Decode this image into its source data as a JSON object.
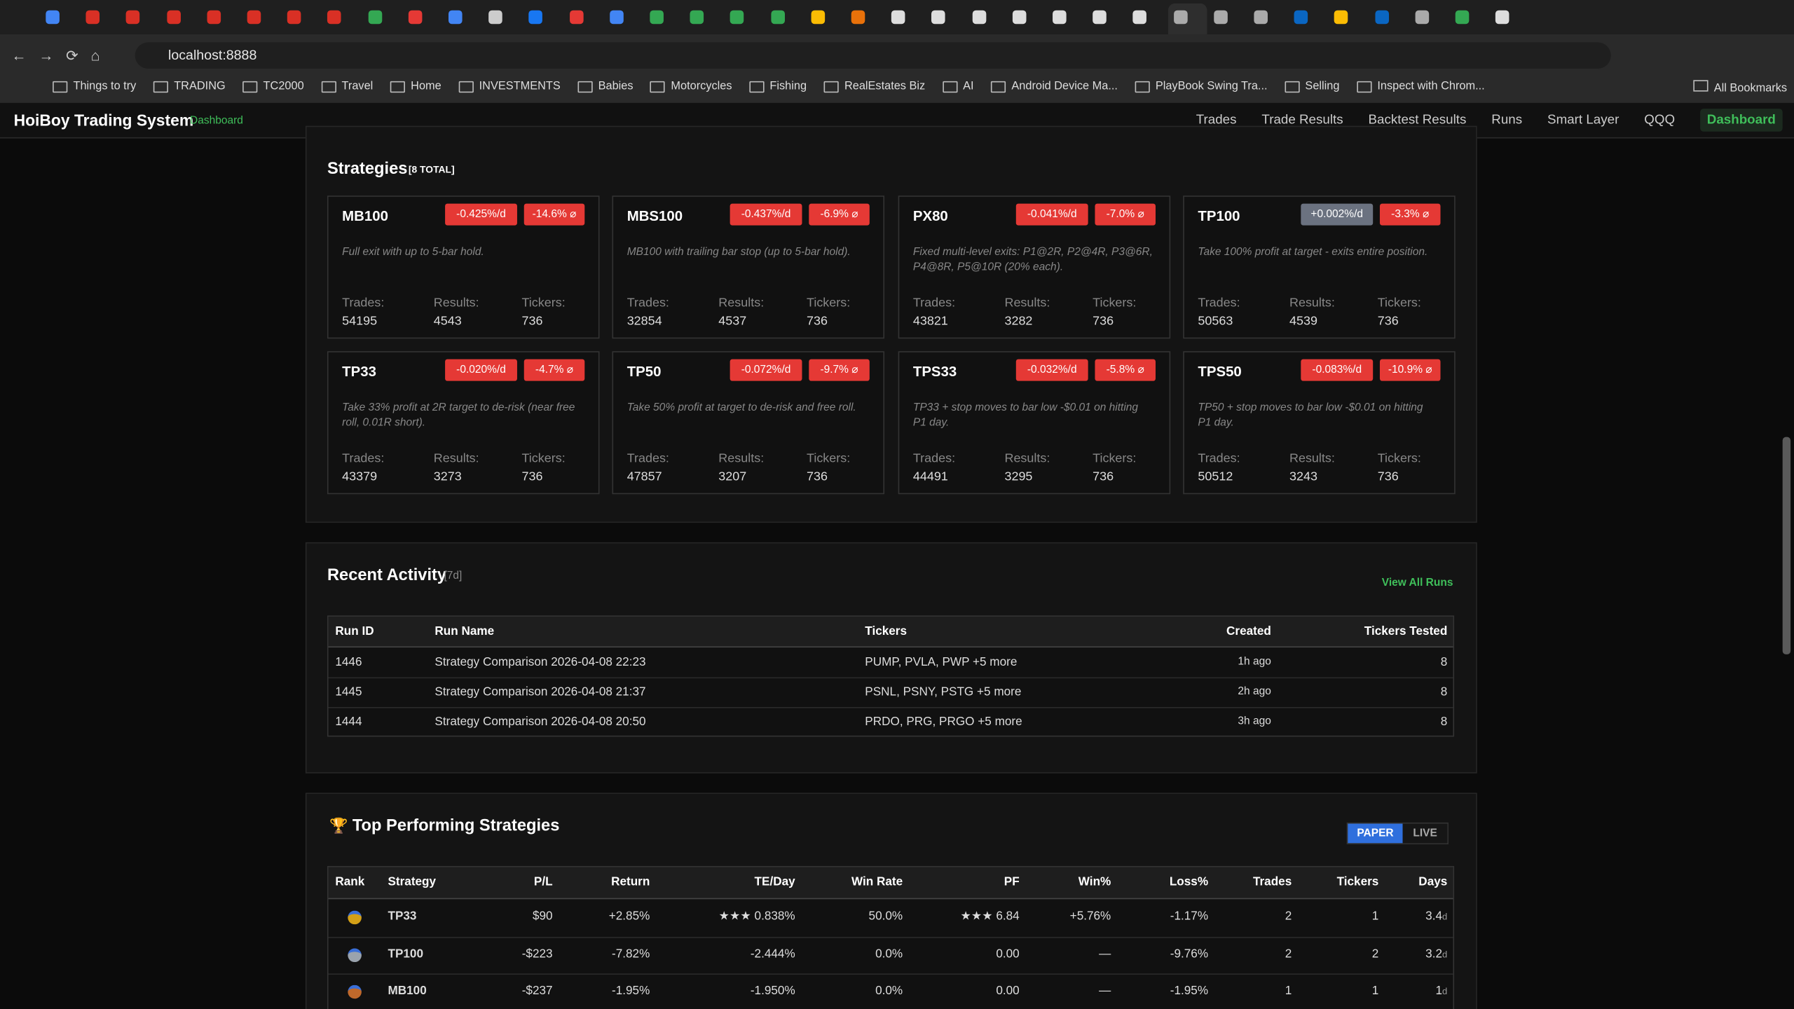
{
  "browser": {
    "url": "localhost:8888",
    "bookmarks": [
      "Things to try",
      "TRADING",
      "TC2000",
      "Travel",
      "Home",
      "INVESTMENTS",
      "Babies",
      "Motorcycles",
      "Fishing",
      "RealEstates Biz",
      "AI",
      "Android Device Ma...",
      "PlayBook Swing Tra...",
      "Selling",
      "Inspect with Chrom..."
    ],
    "all_bookmarks": "All Bookmarks"
  },
  "header": {
    "title": "HoiBoy Trading System",
    "subtitle": "Dashboard",
    "nav": [
      "Trades",
      "Trade Results",
      "Backtest Results",
      "Runs",
      "Smart Layer",
      "QQQ",
      "Dashboard"
    ]
  },
  "strategies": {
    "title": "Strategies",
    "count": "[8 TOTAL]",
    "stat_labels": [
      "Trades:",
      "Results:",
      "Tickers:"
    ],
    "cards": [
      {
        "name": "MB100",
        "rate": "-0.425%/d",
        "drawdown": "-14.6% ⌀",
        "description": "Full exit with up to 5-bar hold.",
        "trades": 54195,
        "results": 4543,
        "tickers": 736
      },
      {
        "name": "MBS100",
        "rate": "-0.437%/d",
        "drawdown": "-6.9% ⌀",
        "description": "MB100 with trailing bar stop (up to 5-bar hold).",
        "trades": 32854,
        "results": 4537,
        "tickers": 736
      },
      {
        "name": "PX80",
        "rate": "-0.041%/d",
        "drawdown": "-7.0% ⌀",
        "description": "Fixed multi-level exits: P1@2R, P2@4R, P3@6R, P4@8R, P5@10R (20% each).",
        "trades": 43821,
        "results": 3282,
        "tickers": 736
      },
      {
        "name": "TP100",
        "rate": "+0.002%/d",
        "drawdown": "-3.3% ⌀",
        "description": "Take 100% profit at target - exits entire position.",
        "trades": 50563,
        "results": 4539,
        "tickers": 736
      },
      {
        "name": "TP33",
        "rate": "-0.020%/d",
        "drawdown": "-4.7% ⌀",
        "description": "Take 33% profit at 2R target to de-risk (near free roll, 0.01R short).",
        "trades": 43379,
        "results": 3273,
        "tickers": 736
      },
      {
        "name": "TP50",
        "rate": "-0.072%/d",
        "drawdown": "-9.7% ⌀",
        "description": "Take 50% profit at target to de-risk and free roll.",
        "trades": 47857,
        "results": 3207,
        "tickers": 736
      },
      {
        "name": "TPS33",
        "rate": "-0.032%/d",
        "drawdown": "-5.8% ⌀",
        "description": "TP33 + stop moves to bar low -$0.01 on hitting P1 day.",
        "trades": 44491,
        "results": 3295,
        "tickers": 736
      },
      {
        "name": "TPS50",
        "rate": "-0.083%/d",
        "drawdown": "-10.9% ⌀",
        "description": "TP50 + stop moves to bar low -$0.01 on hitting P1 day.",
        "trades": 50512,
        "results": 3243,
        "tickers": 736
      }
    ]
  },
  "activity": {
    "title": "Recent Activity",
    "period": "[7d]",
    "link": "View All Runs",
    "columns": [
      "Run ID",
      "Run Name",
      "Tickers",
      "Created",
      "Tickers Tested"
    ],
    "rows": [
      [
        1446,
        "Strategy Comparison 2026-04-08 22:23",
        "PUMP, PVLA, PWP +5 more",
        "1h ago",
        8
      ],
      [
        1445,
        "Strategy Comparison 2026-04-08 21:37",
        "PSNL, PSNY, PSTG +5 more",
        "2h ago",
        8
      ],
      [
        1444,
        "Strategy Comparison 2026-04-08 20:50",
        "PRDO, PRG, PRGO +5 more",
        "3h ago",
        8
      ]
    ]
  },
  "top": {
    "title": "Top Performing Strategies",
    "modes": [
      "PAPER",
      "LIVE"
    ],
    "columns": [
      "Rank",
      "Strategy",
      "P/L",
      "Return",
      "TE/Day",
      "Win Rate",
      "PF",
      "Win%",
      "Loss%",
      "Trades",
      "Tickers",
      "Days"
    ],
    "day_unit": "d",
    "rows": [
      {
        "strategy": "TP33",
        "pl": "$90",
        "return": "+2.85%",
        "te_day": "★★★ 0.838%",
        "win_rate": "50.0%",
        "pf": "★★★ 6.84",
        "win_pct": "+5.76%",
        "loss_pct": "-1.17%",
        "trades": 2,
        "tickers": 1,
        "days": 3.4
      },
      {
        "strategy": "TP100",
        "pl": "-$223",
        "return": "-7.82%",
        "te_day": "-2.444%",
        "win_rate": "0.0%",
        "pf": "0.00",
        "win_pct": "—",
        "loss_pct": "-9.76%",
        "trades": 2,
        "tickers": 2,
        "days": 3.2
      },
      {
        "strategy": "MB100",
        "pl": "-$237",
        "return": "-1.95%",
        "te_day": "-1.950%",
        "win_rate": "0.0%",
        "pf": "0.00",
        "win_pct": "—",
        "loss_pct": "-1.95%",
        "trades": 1,
        "tickers": 1,
        "days": 1.0
      }
    ]
  }
}
